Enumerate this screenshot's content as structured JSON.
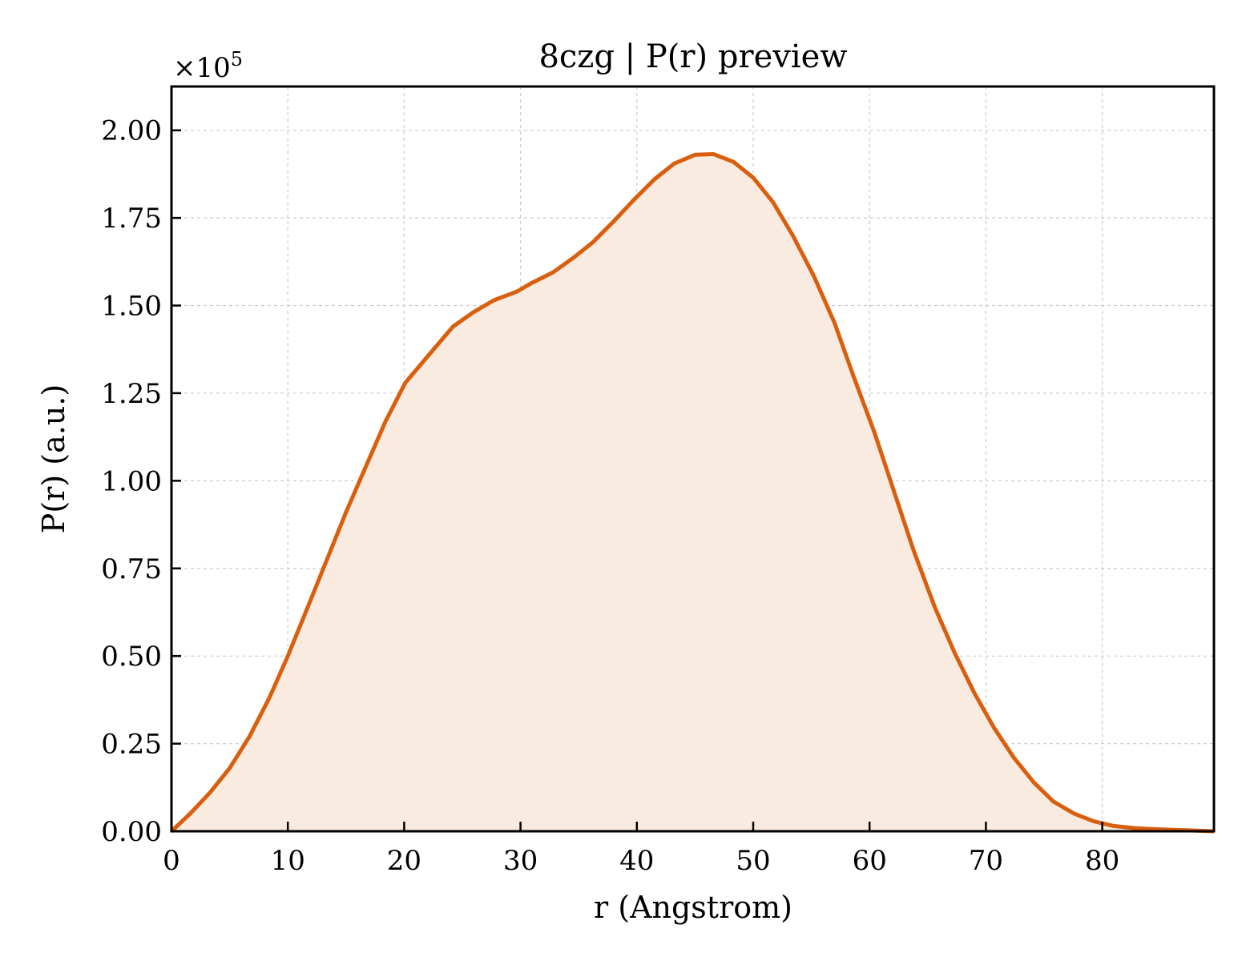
{
  "chart_data": {
    "type": "area",
    "title": "8czg | P(r) preview",
    "xlabel": "r (Angstrom)",
    "ylabel": "P(r) (a.u.)",
    "y_multiplier_label": "×10",
    "y_multiplier_exponent": "5",
    "xlim": [
      0,
      89.6
    ],
    "ylim": [
      0,
      2.125
    ],
    "y_scale_factor": 100000,
    "x_ticks": [
      0,
      10,
      20,
      30,
      40,
      50,
      60,
      70,
      80
    ],
    "x_tick_labels": [
      "0",
      "10",
      "20",
      "30",
      "40",
      "50",
      "60",
      "70",
      "80"
    ],
    "y_ticks": [
      0,
      0.25,
      0.5,
      0.75,
      1.0,
      1.25,
      1.5,
      1.75,
      2.0
    ],
    "y_tick_labels": [
      "0.00",
      "0.25",
      "0.50",
      "0.75",
      "1.00",
      "1.25",
      "1.50",
      "1.75",
      "2.00"
    ],
    "grid": true,
    "line_color": "#d95f0e",
    "fill_color": "#f9ebe0",
    "series": [
      {
        "x": [
          0,
          1.6,
          3.3,
          5.0,
          6.7,
          8.4,
          10.0,
          11.6,
          13.3,
          15.0,
          16.7,
          18.4,
          20.1,
          22.4,
          24.2,
          25.9,
          27.7,
          29.7,
          31.0,
          32.8,
          34.5,
          36.2,
          38.0,
          39.7,
          41.5,
          43.2,
          45.0,
          46.6,
          48.3,
          50.0,
          51.7,
          53.4,
          55.2,
          57.0,
          58.6,
          60.4,
          62.1,
          63.8,
          65.6,
          67.3,
          69.0,
          70.7,
          72.4,
          74.1,
          75.8,
          77.6,
          79.3,
          81.0,
          82.8,
          84.5,
          86.2,
          87.9,
          89.6
        ],
        "y": [
          0.0,
          0.05,
          0.11,
          0.18,
          0.27,
          0.38,
          0.5,
          0.63,
          0.77,
          0.91,
          1.04,
          1.17,
          1.28,
          1.37,
          1.44,
          1.48,
          1.515,
          1.54,
          1.565,
          1.595,
          1.635,
          1.68,
          1.74,
          1.8,
          1.86,
          1.905,
          1.93,
          1.932,
          1.91,
          1.865,
          1.795,
          1.7,
          1.585,
          1.45,
          1.3,
          1.14,
          0.97,
          0.8,
          0.64,
          0.51,
          0.395,
          0.295,
          0.21,
          0.14,
          0.085,
          0.05,
          0.028,
          0.015,
          0.009,
          0.006,
          0.004,
          0.002,
          0.0
        ]
      }
    ]
  }
}
